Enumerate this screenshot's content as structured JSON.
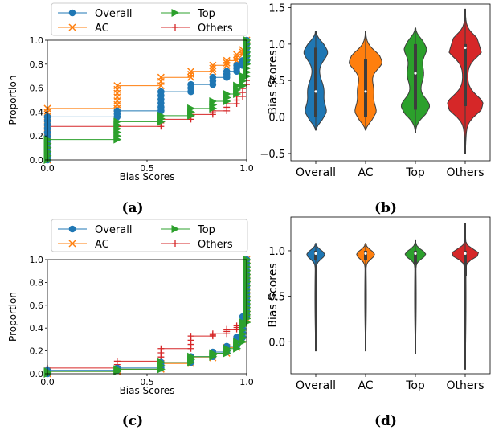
{
  "colors": {
    "Overall": "#1f77b4",
    "AC": "#ff7f0e",
    "Top": "#2ca02c",
    "Others": "#d62728"
  },
  "panels": [
    {
      "caption": "(a)"
    },
    {
      "caption": "(b)"
    },
    {
      "caption": "(c)"
    },
    {
      "caption": "(d)"
    }
  ],
  "chart_data": [
    {
      "panel": "(a)",
      "type": "line",
      "subtype": "step-cdf",
      "xlabel": "Bias Scores",
      "ylabel": "Proportion",
      "xlim": [
        0.0,
        1.0
      ],
      "ylim": [
        0.0,
        1.0
      ],
      "xticks": [
        "0.0",
        "0.5",
        "1.0"
      ],
      "yticks": [
        "0.0",
        "0.2",
        "0.4",
        "0.6",
        "0.8",
        "1.0"
      ],
      "legend": {
        "placement": "top",
        "entries": [
          "Overall",
          "AC",
          "Top",
          "Others"
        ]
      },
      "series": [
        {
          "name": "Overall",
          "marker": "circle",
          "x": [
            0.0,
            0.35,
            0.57,
            0.72,
            0.83,
            0.9,
            0.95,
            0.98,
            1.0
          ],
          "y": [
            0.36,
            0.41,
            0.57,
            0.63,
            0.69,
            0.74,
            0.79,
            0.83,
            1.0
          ]
        },
        {
          "name": "AC",
          "marker": "x",
          "x": [
            0.0,
            0.35,
            0.57,
            0.72,
            0.83,
            0.9,
            0.95,
            0.98,
            1.0
          ],
          "y": [
            0.43,
            0.62,
            0.69,
            0.74,
            0.79,
            0.83,
            0.88,
            0.92,
            1.0
          ]
        },
        {
          "name": "Top",
          "marker": "triangle-right",
          "x": [
            0.0,
            0.35,
            0.57,
            0.72,
            0.83,
            0.9,
            0.95,
            0.98,
            1.0
          ],
          "y": [
            0.17,
            0.32,
            0.37,
            0.43,
            0.49,
            0.55,
            0.62,
            0.7,
            1.0
          ]
        },
        {
          "name": "Others",
          "marker": "plus",
          "x": [
            0.0,
            0.35,
            0.57,
            0.72,
            0.83,
            0.9,
            0.95,
            0.98,
            1.0
          ],
          "y": [
            0.28,
            0.28,
            0.34,
            0.38,
            0.41,
            0.47,
            0.53,
            0.63,
            1.0
          ]
        }
      ]
    },
    {
      "panel": "(b)",
      "type": "violin",
      "ylabel": "Bias Scores",
      "categories": [
        "Overall",
        "AC",
        "Top",
        "Others"
      ],
      "ylim": [
        -0.6,
        1.55
      ],
      "yticks": [
        "−0.5",
        "0.0",
        "0.5",
        "1.0",
        "1.5"
      ],
      "series": [
        {
          "name": "Overall",
          "min": -0.18,
          "max": 1.18,
          "median": 0.35,
          "q1": 0.0,
          "q3": 0.95
        },
        {
          "name": "AC",
          "min": -0.18,
          "max": 1.18,
          "median": 0.35,
          "q1": 0.0,
          "q3": 0.8
        },
        {
          "name": "Top",
          "min": -0.22,
          "max": 1.22,
          "median": 0.6,
          "q1": 0.1,
          "q3": 1.0
        },
        {
          "name": "Others",
          "min": -0.5,
          "max": 1.48,
          "median": 0.95,
          "q1": 0.15,
          "q3": 1.0
        }
      ]
    },
    {
      "panel": "(c)",
      "type": "line",
      "subtype": "step-cdf",
      "xlabel": "Bias Scores",
      "ylabel": "Proportion",
      "xlim": [
        0.0,
        1.0
      ],
      "ylim": [
        0.0,
        1.0
      ],
      "xticks": [
        "0.0",
        "0.5",
        "1.0"
      ],
      "yticks": [
        "0.0",
        "0.2",
        "0.4",
        "0.6",
        "0.8",
        "1.0"
      ],
      "legend": {
        "placement": "top",
        "entries": [
          "Overall",
          "AC",
          "Top",
          "Others"
        ]
      },
      "series": [
        {
          "name": "Overall",
          "marker": "circle",
          "x": [
            0.0,
            0.35,
            0.57,
            0.72,
            0.83,
            0.9,
            0.95,
            0.98,
            1.0
          ],
          "y": [
            0.03,
            0.05,
            0.1,
            0.15,
            0.19,
            0.24,
            0.32,
            0.5,
            1.0
          ]
        },
        {
          "name": "AC",
          "marker": "x",
          "x": [
            0.0,
            0.35,
            0.57,
            0.72,
            0.83,
            0.9,
            0.95,
            0.98,
            1.0
          ],
          "y": [
            0.02,
            0.04,
            0.09,
            0.14,
            0.18,
            0.23,
            0.3,
            0.48,
            1.0
          ]
        },
        {
          "name": "Top",
          "marker": "triangle-right",
          "x": [
            0.0,
            0.35,
            0.57,
            0.72,
            0.83,
            0.9,
            0.95,
            0.98,
            1.0
          ],
          "y": [
            0.02,
            0.04,
            0.1,
            0.15,
            0.18,
            0.22,
            0.28,
            0.45,
            1.0
          ]
        },
        {
          "name": "Others",
          "marker": "plus",
          "x": [
            0.0,
            0.35,
            0.57,
            0.72,
            0.83,
            0.9,
            0.95,
            0.98,
            1.0
          ],
          "y": [
            0.05,
            0.11,
            0.22,
            0.33,
            0.35,
            0.39,
            0.42,
            0.5,
            1.0
          ]
        }
      ]
    },
    {
      "panel": "(d)",
      "type": "violin",
      "ylabel": "Bias Scores",
      "categories": [
        "Overall",
        "AC",
        "Top",
        "Others"
      ],
      "ylim": [
        -0.35,
        1.37
      ],
      "yticks": [
        "0.0",
        "0.5",
        "1.0"
      ],
      "series": [
        {
          "name": "Overall",
          "min": -0.1,
          "max": 1.08,
          "median": 0.97,
          "q1": 0.9,
          "q3": 1.0
        },
        {
          "name": "AC",
          "min": -0.1,
          "max": 1.08,
          "median": 0.97,
          "q1": 0.9,
          "q3": 1.0
        },
        {
          "name": "Top",
          "min": -0.13,
          "max": 1.12,
          "median": 0.97,
          "q1": 0.85,
          "q3": 1.0
        },
        {
          "name": "Others",
          "min": -0.3,
          "max": 1.3,
          "median": 0.97,
          "q1": 0.72,
          "q3": 1.0
        }
      ]
    }
  ]
}
